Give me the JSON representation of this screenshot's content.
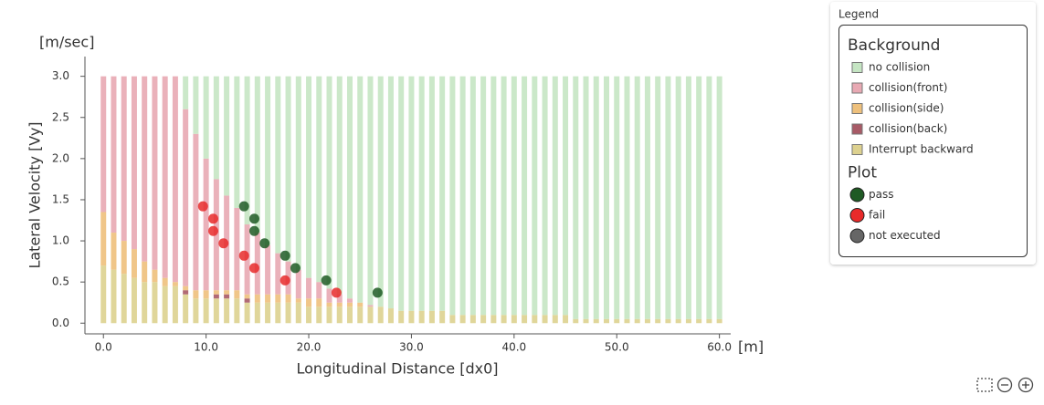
{
  "legend_title": "Legend",
  "chart_data": [
    {
      "type": "bar",
      "stacked": true,
      "legend_title": "Background",
      "xlabel": "Longitudinal Distance [dx0]",
      "ylabel": "Lateral Velocity [Vy]",
      "xunit": "[m]",
      "yunit": "[m/sec]",
      "xlim": [
        -1.8,
        61.1
      ],
      "ylim": [
        -0.13,
        3.24
      ],
      "xticks": [
        {
          "value": 0,
          "label": "0.0"
        },
        {
          "value": 10,
          "label": "10.0"
        },
        {
          "value": 20,
          "label": "20.0"
        },
        {
          "value": 30,
          "label": "30.0"
        },
        {
          "value": 40,
          "label": "40.0"
        },
        {
          "value": 50,
          "label": "50.0"
        },
        {
          "value": 60,
          "label": "60.0"
        }
      ],
      "yticks": [
        {
          "value": 0,
          "label": "0.0"
        },
        0.5,
        {
          "value": 1,
          "label": "1.0"
        },
        1.5,
        {
          "value": 2,
          "label": "2.0"
        },
        2.5,
        {
          "value": 3,
          "label": "3.0"
        }
      ],
      "x": [
        0,
        1,
        2,
        3,
        4,
        5,
        6,
        7,
        8,
        9,
        10,
        11,
        12,
        13,
        14,
        15,
        16,
        17,
        18,
        19,
        20,
        21,
        22,
        23,
        24,
        25,
        26,
        27,
        28,
        29,
        30,
        31,
        32,
        33,
        34,
        35,
        36,
        37,
        38,
        39,
        40,
        41,
        42,
        43,
        44,
        45,
        46,
        47,
        48,
        49,
        50,
        51,
        52,
        53,
        54,
        55,
        56,
        57,
        58,
        59,
        60
      ],
      "series": [
        {
          "name": "no collision",
          "color": "#c5e5c3",
          "values": [
            0,
            0,
            0,
            0,
            0,
            0,
            0,
            0,
            0.4,
            0.7,
            1.0,
            1.25,
            1.45,
            1.6,
            1.8,
            1.9,
            2.05,
            2.15,
            2.25,
            2.35,
            2.45,
            2.5,
            2.58,
            2.65,
            2.7,
            2.75,
            2.78,
            2.8,
            2.82,
            2.85,
            2.85,
            2.85,
            2.85,
            2.85,
            2.9,
            2.9,
            2.9,
            2.9,
            2.9,
            2.9,
            2.9,
            2.9,
            2.9,
            2.9,
            2.9,
            2.9,
            2.95,
            2.95,
            2.95,
            2.95,
            2.95,
            2.95,
            2.95,
            2.95,
            2.95,
            2.95,
            2.95,
            2.95,
            2.95,
            2.95,
            2.95
          ]
        },
        {
          "name": "collision(front)",
          "color": "#e8a9b3",
          "values": [
            1.65,
            1.9,
            2.0,
            2.1,
            2.25,
            2.35,
            2.45,
            2.5,
            2.15,
            1.9,
            1.6,
            1.35,
            1.15,
            1.0,
            0.85,
            0.75,
            0.6,
            0.5,
            0.4,
            0.35,
            0.25,
            0.2,
            0.17,
            0.1,
            0.05,
            0,
            0.02,
            0,
            0,
            0,
            0,
            0,
            0,
            0,
            0,
            0,
            0,
            0,
            0,
            0,
            0,
            0,
            0,
            0,
            0,
            0,
            0,
            0,
            0,
            0,
            0,
            0,
            0,
            0,
            0,
            0,
            0,
            0,
            0,
            0,
            0
          ]
        },
        {
          "name": "collision(side)",
          "color": "#eec07c",
          "values": [
            0.65,
            0.45,
            0.4,
            0.35,
            0.25,
            0.15,
            0.1,
            0.05,
            0.05,
            0.1,
            0.1,
            0.05,
            0.05,
            0.1,
            0.05,
            0.1,
            0.1,
            0.1,
            0.1,
            0.05,
            0.1,
            0.1,
            0.05,
            0.05,
            0.05,
            0.05,
            0,
            0,
            0,
            0,
            0,
            0,
            0,
            0,
            0,
            0,
            0,
            0,
            0,
            0,
            0,
            0,
            0,
            0,
            0,
            0,
            0,
            0,
            0,
            0,
            0,
            0,
            0,
            0,
            0,
            0,
            0,
            0,
            0,
            0,
            0
          ]
        },
        {
          "name": "collision(back)",
          "color": "#a85a66",
          "values": [
            0,
            0,
            0,
            0,
            0,
            0,
            0,
            0,
            0.05,
            0,
            0,
            0.05,
            0.05,
            0,
            0.05,
            0,
            0,
            0,
            0,
            0,
            0,
            0,
            0,
            0,
            0,
            0,
            0,
            0,
            0,
            0,
            0,
            0,
            0,
            0,
            0,
            0,
            0,
            0,
            0,
            0,
            0,
            0,
            0,
            0,
            0,
            0,
            0,
            0,
            0,
            0,
            0,
            0,
            0,
            0,
            0,
            0,
            0,
            0,
            0,
            0,
            0
          ]
        },
        {
          "name": "Interrupt backward",
          "color": "#ddd18f",
          "values": [
            0.7,
            0.65,
            0.6,
            0.55,
            0.5,
            0.5,
            0.45,
            0.45,
            0.35,
            0.3,
            0.3,
            0.3,
            0.3,
            0.3,
            0.25,
            0.25,
            0.25,
            0.25,
            0.25,
            0.25,
            0.2,
            0.2,
            0.2,
            0.2,
            0.2,
            0.2,
            0.2,
            0.2,
            0.18,
            0.15,
            0.15,
            0.15,
            0.15,
            0.15,
            0.1,
            0.1,
            0.1,
            0.1,
            0.1,
            0.1,
            0.1,
            0.1,
            0.1,
            0.1,
            0.1,
            0.1,
            0.05,
            0.05,
            0.05,
            0.05,
            0.05,
            0.05,
            0.05,
            0.05,
            0.05,
            0.05,
            0.05,
            0.05,
            0.05,
            0.05,
            0.05
          ]
        }
      ]
    },
    {
      "type": "scatter",
      "legend_title": "Plot",
      "series": [
        {
          "name": "pass",
          "color": "#1f5a24",
          "x": [
            13.7,
            14.7,
            14.7,
            15.7,
            17.7,
            18.7,
            21.7,
            26.7
          ],
          "values": [
            1.42,
            1.27,
            1.12,
            0.97,
            0.82,
            0.67,
            0.52,
            0.37
          ]
        },
        {
          "name": "fail",
          "color": "#e82a2a",
          "x": [
            9.7,
            10.7,
            10.7,
            11.7,
            13.7,
            14.7,
            17.7,
            22.7
          ],
          "values": [
            1.42,
            1.27,
            1.12,
            0.97,
            0.82,
            0.67,
            0.52,
            0.37
          ]
        },
        {
          "name": "not executed",
          "color": "#666666",
          "x": [],
          "values": []
        }
      ]
    }
  ]
}
